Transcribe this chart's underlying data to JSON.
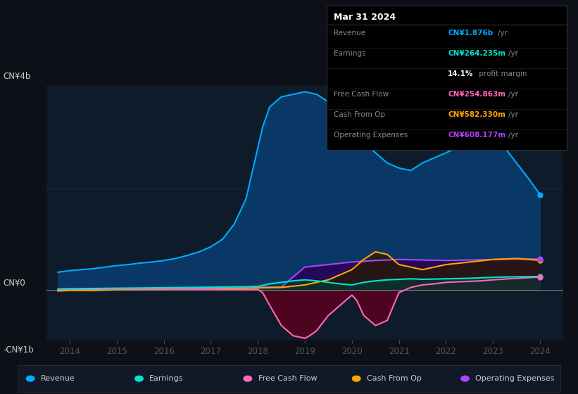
{
  "bg_color": "#0d1117",
  "plot_bg_color": "#0d1b2a",
  "title_date": "Mar 31 2024",
  "tooltip_rows": [
    {
      "label": "Revenue",
      "value": "CN¥1.876b",
      "unit": "/yr",
      "color": "#00aaff"
    },
    {
      "label": "Earnings",
      "value": "CN¥264.235m",
      "unit": "/yr",
      "color": "#00e5cc"
    },
    {
      "label": "",
      "value": "14.1%",
      "unit": " profit margin",
      "color": "#ffffff"
    },
    {
      "label": "Free Cash Flow",
      "value": "CN¥254.863m",
      "unit": "/yr",
      "color": "#ff69b4"
    },
    {
      "label": "Cash From Op",
      "value": "CN¥582.330m",
      "unit": "/yr",
      "color": "#ffa500"
    },
    {
      "label": "Operating Expenses",
      "value": "CN¥608.177m",
      "unit": "/yr",
      "color": "#aa44ff"
    }
  ],
  "ylim": [
    -1000000000.0,
    4000000000.0
  ],
  "xlim": [
    2013.5,
    2024.5
  ],
  "ytick_labels": [
    "-CN¥1b",
    "CN¥0",
    "CN¥4b"
  ],
  "xticks": [
    2014,
    2015,
    2016,
    2017,
    2018,
    2019,
    2020,
    2021,
    2022,
    2023,
    2024
  ],
  "legend_items": [
    {
      "label": "Revenue",
      "color": "#00aaff"
    },
    {
      "label": "Earnings",
      "color": "#00e5cc"
    },
    {
      "label": "Free Cash Flow",
      "color": "#ff69b4"
    },
    {
      "label": "Cash From Op",
      "color": "#ffa500"
    },
    {
      "label": "Operating Expenses",
      "color": "#aa44ff"
    }
  ],
  "revenue": {
    "x": [
      2013.75,
      2014,
      2014.25,
      2014.5,
      2014.75,
      2015,
      2015.25,
      2015.5,
      2015.75,
      2016,
      2016.25,
      2016.5,
      2016.75,
      2017,
      2017.25,
      2017.5,
      2017.75,
      2018,
      2018.1,
      2018.25,
      2018.5,
      2018.75,
      2019,
      2019.25,
      2019.5,
      2019.75,
      2020,
      2020.25,
      2020.5,
      2020.75,
      2021,
      2021.25,
      2021.5,
      2021.75,
      2022,
      2022.25,
      2022.5,
      2022.75,
      2023,
      2023.25,
      2023.5,
      2023.75,
      2024
    ],
    "y": [
      350000000.0,
      380000000.0,
      400000000.0,
      420000000.0,
      450000000.0,
      480000000.0,
      500000000.0,
      530000000.0,
      550000000.0,
      580000000.0,
      620000000.0,
      680000000.0,
      750000000.0,
      850000000.0,
      1000000000.0,
      1300000000.0,
      1800000000.0,
      2800000000.0,
      3200000000.0,
      3600000000.0,
      3800000000.0,
      3850000000.0,
      3900000000.0,
      3850000000.0,
      3700000000.0,
      3500000000.0,
      3200000000.0,
      2900000000.0,
      2700000000.0,
      2500000000.0,
      2400000000.0,
      2350000000.0,
      2500000000.0,
      2600000000.0,
      2700000000.0,
      2800000000.0,
      2900000000.0,
      2850000000.0,
      3000000000.0,
      2800000000.0,
      2500000000.0,
      2200000000.0,
      1876000000.0
    ],
    "color": "#00aaff",
    "fill_color": "#0a3a6a"
  },
  "earnings": {
    "x": [
      2013.75,
      2014,
      2014.5,
      2015,
      2015.5,
      2016,
      2016.5,
      2017,
      2017.5,
      2018,
      2018.25,
      2018.5,
      2018.75,
      2019,
      2019.25,
      2019.5,
      2019.75,
      2020,
      2020.25,
      2020.5,
      2020.75,
      2021,
      2021.25,
      2021.5,
      2022,
      2022.5,
      2023,
      2023.5,
      2024
    ],
    "y": [
      20000000.0,
      25000000.0,
      30000000.0,
      35000000.0,
      40000000.0,
      45000000.0,
      50000000.0,
      55000000.0,
      60000000.0,
      70000000.0,
      120000000.0,
      150000000.0,
      180000000.0,
      200000000.0,
      180000000.0,
      150000000.0,
      120000000.0,
      100000000.0,
      150000000.0,
      180000000.0,
      200000000.0,
      210000000.0,
      220000000.0,
      210000000.0,
      220000000.0,
      230000000.0,
      250000000.0,
      260000000.0,
      264235000.0
    ],
    "color": "#00e5cc",
    "fill_color": "#003a35"
  },
  "free_cash_flow": {
    "x": [
      2013.75,
      2014,
      2014.5,
      2015,
      2015.5,
      2016,
      2016.5,
      2017,
      2017.5,
      2018,
      2018.1,
      2018.25,
      2018.5,
      2018.75,
      2019,
      2019.1,
      2019.25,
      2019.5,
      2019.75,
      2020,
      2020.1,
      2020.25,
      2020.5,
      2020.75,
      2021,
      2021.25,
      2021.5,
      2021.75,
      2022,
      2022.25,
      2022.5,
      2022.75,
      2023,
      2023.5,
      2024
    ],
    "y": [
      10000000.0,
      15000000.0,
      15000000.0,
      20000000.0,
      20000000.0,
      20000000.0,
      20000000.0,
      15000000.0,
      10000000.0,
      10000000.0,
      -50000000.0,
      -300000000.0,
      -700000000.0,
      -900000000.0,
      -950000000.0,
      -900000000.0,
      -800000000.0,
      -500000000.0,
      -300000000.0,
      -100000000.0,
      -200000000.0,
      -500000000.0,
      -700000000.0,
      -600000000.0,
      -50000000.0,
      50000000.0,
      100000000.0,
      120000000.0,
      150000000.0,
      160000000.0,
      170000000.0,
      180000000.0,
      200000000.0,
      230000000.0,
      254863000.0
    ],
    "color": "#ff69b4",
    "fill_color": "#5a0020"
  },
  "cash_from_op": {
    "x": [
      2013.75,
      2014,
      2014.5,
      2015,
      2015.5,
      2016,
      2016.5,
      2017,
      2017.5,
      2018,
      2018.5,
      2019,
      2019.5,
      2020,
      2020.25,
      2020.5,
      2020.75,
      2021,
      2021.5,
      2022,
      2022.5,
      2023,
      2023.5,
      2024
    ],
    "y": [
      -20000000.0,
      -10000000.0,
      -10000000.0,
      5000000.0,
      10000000.0,
      15000000.0,
      20000000.0,
      25000000.0,
      30000000.0,
      40000000.0,
      50000000.0,
      100000000.0,
      200000000.0,
      400000000.0,
      600000000.0,
      750000000.0,
      700000000.0,
      500000000.0,
      400000000.0,
      500000000.0,
      550000000.0,
      600000000.0,
      620000000.0,
      582330000.0
    ],
    "color": "#ffa500",
    "fill_color": "#3a2a00"
  },
  "operating_expenses": {
    "x": [
      2013.75,
      2014,
      2014.5,
      2015,
      2015.5,
      2016,
      2016.5,
      2017,
      2017.5,
      2018,
      2018.5,
      2019,
      2019.5,
      2020,
      2020.5,
      2021,
      2021.5,
      2022,
      2022.5,
      2023,
      2023.5,
      2024
    ],
    "y": [
      10000000.0,
      15000000.0,
      20000000.0,
      25000000.0,
      30000000.0,
      35000000.0,
      40000000.0,
      45000000.0,
      50000000.0,
      55000000.0,
      60000000.0,
      450000000.0,
      500000000.0,
      550000000.0,
      580000000.0,
      600000000.0,
      590000000.0,
      580000000.0,
      590000000.0,
      600000000.0,
      610000000.0,
      608177000.0
    ],
    "color": "#aa44ff",
    "fill_color": "#2a004a"
  }
}
